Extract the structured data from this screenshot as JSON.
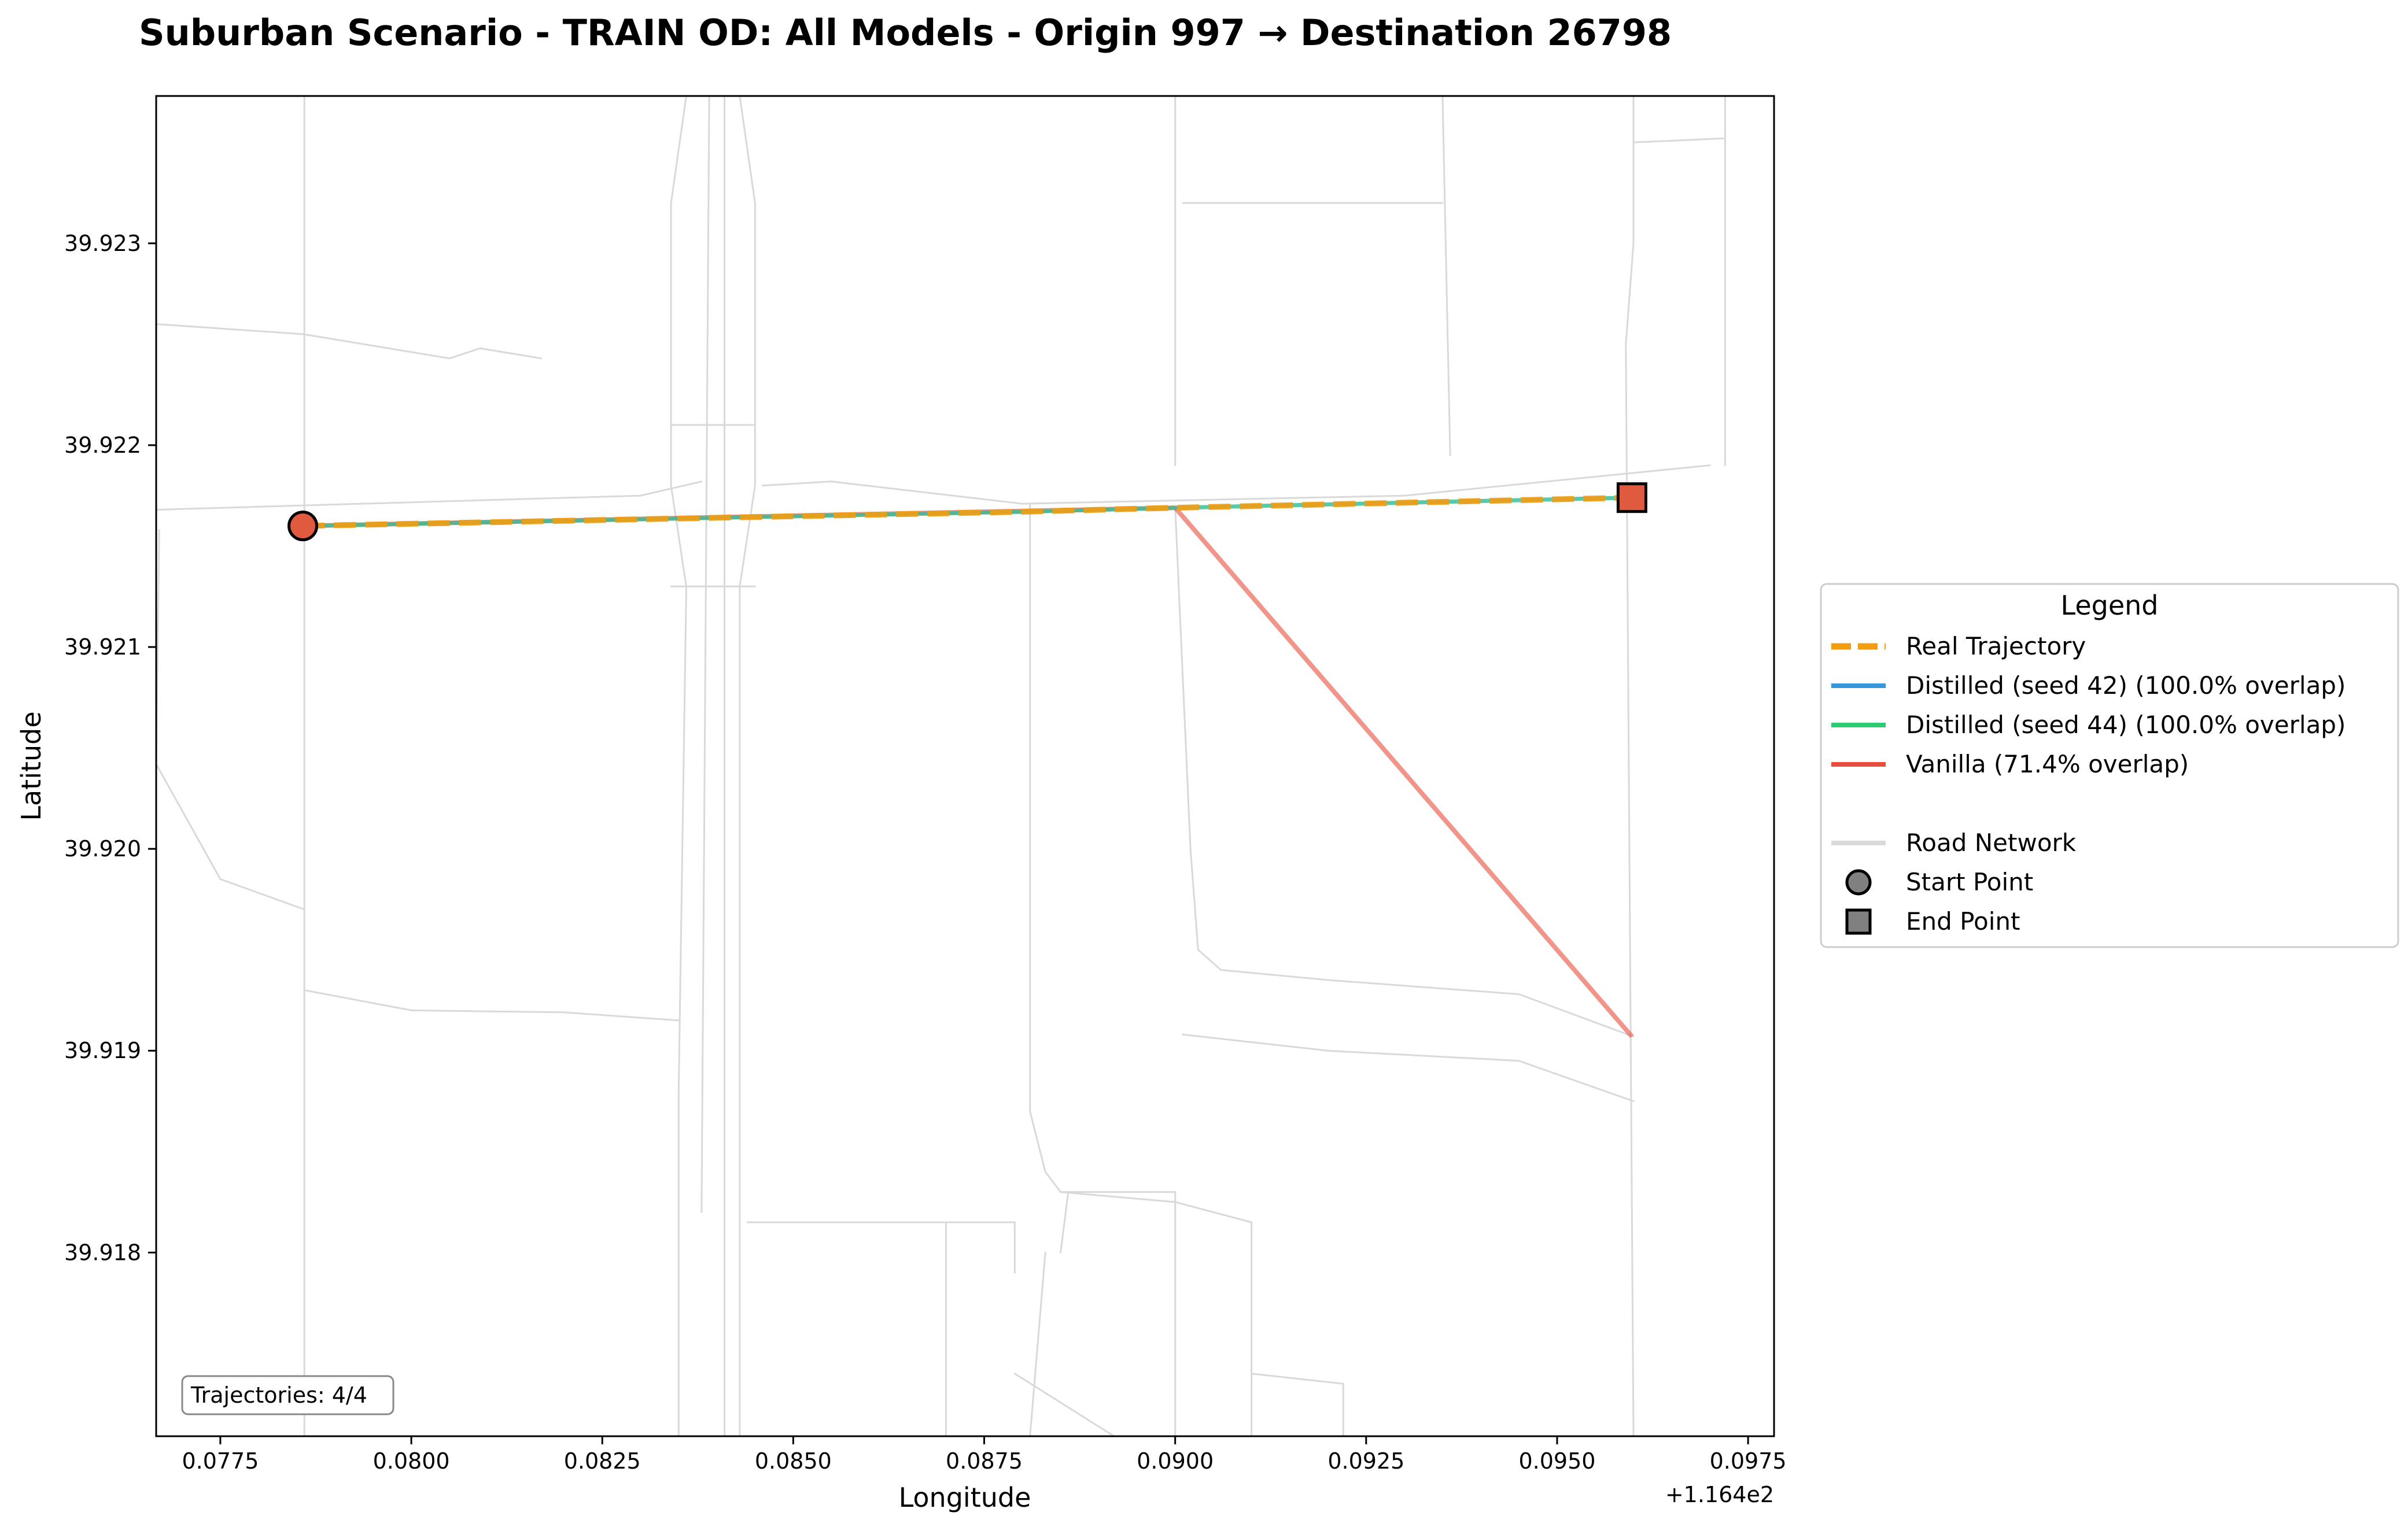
{
  "chart_data": {
    "type": "line",
    "title": "Suburban Scenario - TRAIN OD: All Models - Origin 997 → Destination 26798",
    "xlabel": "Longitude",
    "ylabel": "Latitude",
    "x_offset_label": "+1.164e2",
    "xlim": [
      116.47666,
      116.49784
    ],
    "ylim": [
      39.91709,
      39.92373
    ],
    "xticks": [
      116.4775,
      116.48,
      116.4825,
      116.485,
      116.4875,
      116.49,
      116.4925,
      116.495,
      116.4975
    ],
    "xtick_labels": [
      "0.0775",
      "0.0800",
      "0.0825",
      "0.0850",
      "0.0875",
      "0.0900",
      "0.0925",
      "0.0950",
      "0.0975"
    ],
    "yticks": [
      39.918,
      39.919,
      39.92,
      39.921,
      39.922,
      39.923
    ],
    "ytick_labels": [
      "39.918",
      "39.919",
      "39.920",
      "39.921",
      "39.922",
      "39.923"
    ],
    "grid": false,
    "legend_title": "Legend",
    "legend_placement": "right-outside",
    "annotation": "Trajectories: 4/4",
    "series": [
      {
        "name": "Real Trajectory",
        "color": "#f39c12",
        "style": "dashed",
        "points": [
          [
            116.47858,
            39.9216
          ],
          [
            116.488,
            39.92167
          ],
          [
            116.49,
            39.92169
          ],
          [
            116.49598,
            39.92174
          ]
        ]
      },
      {
        "name": "Distilled (seed 42) (100.0% overlap)",
        "color": "#3498db",
        "style": "solid",
        "points": [
          [
            116.47858,
            39.9216
          ],
          [
            116.488,
            39.92167
          ],
          [
            116.49,
            39.92169
          ],
          [
            116.49598,
            39.92174
          ]
        ]
      },
      {
        "name": "Distilled (seed 44) (100.0% overlap)",
        "color": "#2ecc71",
        "style": "solid",
        "points": [
          [
            116.47858,
            39.9216
          ],
          [
            116.488,
            39.92167
          ],
          [
            116.49,
            39.92169
          ],
          [
            116.49598,
            39.92174
          ]
        ]
      },
      {
        "name": "Vanilla (71.4% overlap)",
        "color": "#e74c3c",
        "style": "solid",
        "points": [
          [
            116.47858,
            39.9216
          ],
          [
            116.49,
            39.92169
          ],
          [
            116.49598,
            39.91907
          ]
        ]
      }
    ],
    "road_network": {
      "name": "Road Network",
      "color": "#d9d9d9",
      "segments": [
        [
          [
            116.47666,
            39.9226
          ],
          [
            116.47858,
            39.92255
          ],
          [
            116.4805,
            39.92243
          ],
          [
            116.4809,
            39.92248
          ],
          [
            116.4817,
            39.92243
          ]
        ],
        [
          [
            116.47666,
            39.92168
          ],
          [
            116.483,
            39.92175
          ],
          [
            116.4838,
            39.92182
          ]
        ],
        [
          [
            116.4846,
            39.9218
          ],
          [
            116.4855,
            39.92182
          ],
          [
            116.488,
            39.92171
          ],
          [
            116.493,
            39.92175
          ],
          [
            116.497,
            39.9219
          ]
        ],
        [
          [
            116.4767,
            39.92158
          ],
          [
            116.47666,
            39.9204
          ]
        ],
        [
          [
            116.4786,
            39.92373
          ],
          [
            116.4786,
            39.91709
          ]
        ],
        [
          [
            116.47666,
            39.92042
          ],
          [
            116.4775,
            39.91985
          ],
          [
            116.4786,
            39.9197
          ]
        ],
        [
          [
            116.4786,
            39.9193
          ],
          [
            116.48,
            39.9192
          ],
          [
            116.482,
            39.91919
          ],
          [
            116.4835,
            39.91915
          ]
        ],
        [
          [
            116.4836,
            39.92373
          ],
          [
            116.4834,
            39.9232
          ],
          [
            116.4834,
            39.9218
          ],
          [
            116.4836,
            39.9213
          ],
          [
            116.4835,
            39.9188
          ],
          [
            116.4835,
            39.91709
          ]
        ],
        [
          [
            116.4839,
            39.92373
          ],
          [
            116.4838,
            39.9182
          ]
        ],
        [
          [
            116.4841,
            39.92373
          ],
          [
            116.4841,
            39.91709
          ]
        ],
        [
          [
            116.4843,
            39.92373
          ],
          [
            116.4845,
            39.9232
          ],
          [
            116.4845,
            39.9218
          ],
          [
            116.4843,
            39.9213
          ],
          [
            116.4843,
            39.91709
          ]
        ],
        [
          [
            116.4834,
            39.9221
          ],
          [
            116.4845,
            39.9221
          ]
        ],
        [
          [
            116.4834,
            39.9213
          ],
          [
            116.4845,
            39.9213
          ]
        ],
        [
          [
            116.4844,
            39.91815
          ],
          [
            116.487,
            39.91815
          ],
          [
            116.4879,
            39.91815
          ],
          [
            116.4879,
            39.9179
          ]
        ],
        [
          [
            116.487,
            39.91815
          ],
          [
            116.487,
            39.91709
          ]
        ],
        [
          [
            116.4881,
            39.92171
          ],
          [
            116.4881,
            39.9187
          ],
          [
            116.4883,
            39.9184
          ],
          [
            116.4885,
            39.9183
          ],
          [
            116.49,
            39.9183
          ],
          [
            116.49,
            39.91709
          ]
        ],
        [
          [
            116.4881,
            39.91709
          ],
          [
            116.4883,
            39.918
          ]
        ],
        [
          [
            116.4885,
            39.918
          ],
          [
            116.4886,
            39.9183
          ]
        ],
        [
          [
            116.4879,
            39.9174
          ],
          [
            116.4892,
            39.91709
          ]
        ],
        [
          [
            116.4885,
            39.9183
          ],
          [
            116.49,
            39.91825
          ],
          [
            116.491,
            39.91815
          ],
          [
            116.491,
            39.91709
          ]
        ],
        [
          [
            116.491,
            39.9174
          ],
          [
            116.4922,
            39.91735
          ],
          [
            116.4922,
            39.91709
          ]
        ],
        [
          [
            116.49,
            39.92373
          ],
          [
            116.49,
            39.9219
          ]
        ],
        [
          [
            116.49,
            39.92169
          ],
          [
            116.4902,
            39.92
          ],
          [
            116.4903,
            39.9195
          ],
          [
            116.4906,
            39.9194
          ],
          [
            116.492,
            39.91935
          ],
          [
            116.4945,
            39.91928
          ],
          [
            116.496,
            39.91907
          ]
        ],
        [
          [
            116.4901,
            39.91908
          ],
          [
            116.492,
            39.919
          ],
          [
            116.4935,
            39.91897
          ],
          [
            116.4945,
            39.91895
          ],
          [
            116.496,
            39.91875
          ]
        ],
        [
          [
            116.4901,
            39.9232
          ],
          [
            116.4935,
            39.9232
          ]
        ],
        [
          [
            116.4935,
            39.92373
          ],
          [
            116.4936,
            39.92195
          ]
        ],
        [
          [
            116.496,
            39.92373
          ],
          [
            116.496,
            39.923
          ],
          [
            116.4959,
            39.9225
          ],
          [
            116.496,
            39.91709
          ]
        ],
        [
          [
            116.496,
            39.9235
          ],
          [
            116.4972,
            39.92352
          ]
        ],
        [
          [
            116.4972,
            39.92373
          ],
          [
            116.4972,
            39.9219
          ]
        ]
      ]
    },
    "markers": [
      {
        "name": "Start Point",
        "shape": "circle",
        "lon": 116.47858,
        "lat": 39.9216,
        "color": "#e05a3f"
      },
      {
        "name": "End Point",
        "shape": "square",
        "lon": 116.49598,
        "lat": 39.92174,
        "color": "#e05a3f"
      }
    ],
    "legend_items": [
      {
        "label": "Real Trajectory",
        "kind": "dashed-line",
        "color": "#f39c12"
      },
      {
        "label": "Distilled (seed 42) (100.0% overlap)",
        "kind": "line",
        "color": "#3498db"
      },
      {
        "label": "Distilled (seed 44) (100.0% overlap)",
        "kind": "line",
        "color": "#2ecc71"
      },
      {
        "label": "Vanilla (71.4% overlap)",
        "kind": "line",
        "color": "#e74c3c"
      },
      {
        "label": "",
        "kind": "blank",
        "color": ""
      },
      {
        "label": "Road Network",
        "kind": "line",
        "color": "#d9d9d9"
      },
      {
        "label": "Start Point",
        "kind": "circle",
        "color": "#808080"
      },
      {
        "label": "End Point",
        "kind": "square",
        "color": "#808080"
      }
    ]
  }
}
